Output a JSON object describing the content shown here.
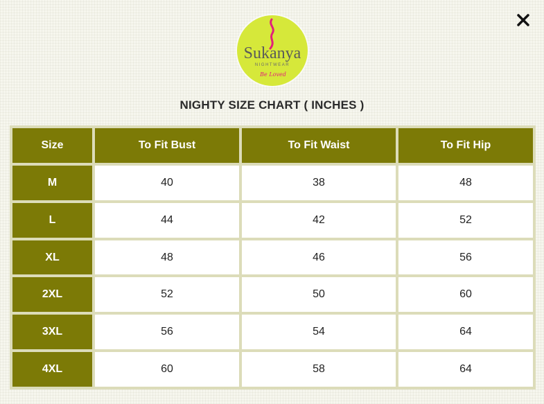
{
  "brand": {
    "name": "Sukanya",
    "tagline": "NIGHTWEAR",
    "slogan": "Be Loved",
    "circle_color": "#d6e83a",
    "accent_color": "#e2207a",
    "text_color": "#5a5a5a"
  },
  "close_icon": "close-icon",
  "title": "NIGHTY SIZE CHART ( INCHES )",
  "table": {
    "headers": [
      "Size",
      "To Fit Bust",
      "To Fit Waist",
      "To Fit Hip"
    ],
    "rows": [
      {
        "size": "M",
        "bust": "40",
        "waist": "38",
        "hip": "48"
      },
      {
        "size": "L",
        "bust": "44",
        "waist": "42",
        "hip": "52"
      },
      {
        "size": "XL",
        "bust": "48",
        "waist": "46",
        "hip": "56"
      },
      {
        "size": "2XL",
        "bust": "52",
        "waist": "50",
        "hip": "60"
      },
      {
        "size": "3XL",
        "bust": "56",
        "waist": "54",
        "hip": "64"
      },
      {
        "size": "4XL",
        "bust": "60",
        "waist": "58",
        "hip": "64"
      }
    ]
  },
  "colors": {
    "header_bg": "#7c7a06",
    "header_text": "#ffffff",
    "cell_bg": "#ffffff",
    "grid_bg": "#dcdcb9"
  }
}
